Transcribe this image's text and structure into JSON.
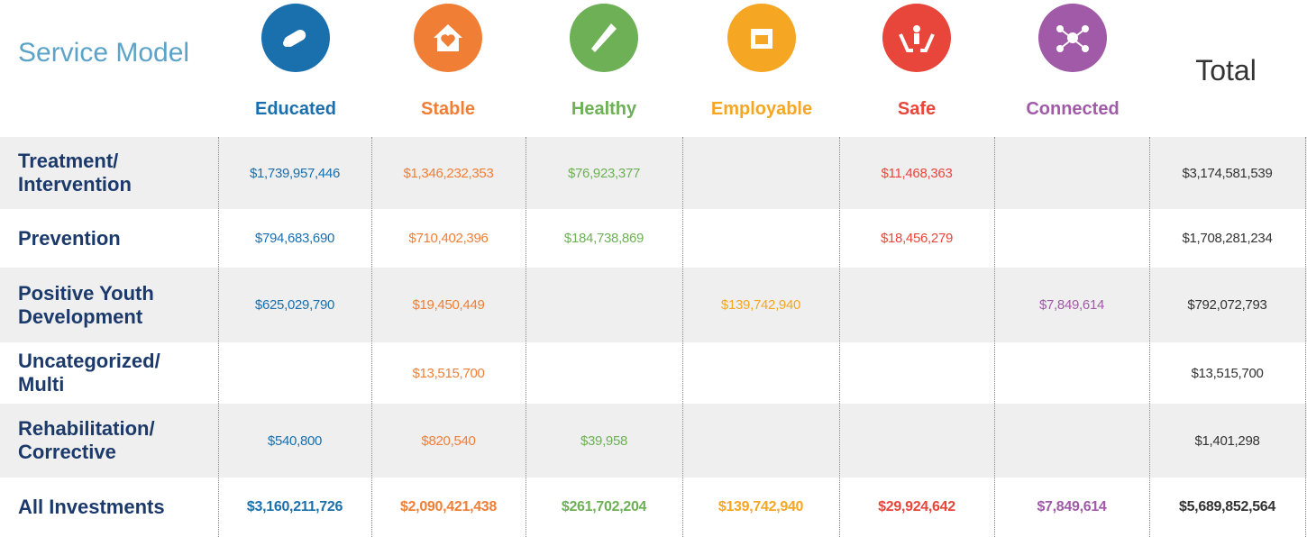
{
  "header": {
    "title": "Service Model",
    "total_label": "Total",
    "columns": [
      {
        "label": "Educated",
        "color": "#1a6fad"
      },
      {
        "label": "Stable",
        "color": "#f07f35"
      },
      {
        "label": "Healthy",
        "color": "#6db055"
      },
      {
        "label": "Employable",
        "color": "#f5a623"
      },
      {
        "label": "Safe",
        "color": "#e8463a"
      },
      {
        "label": "Connected",
        "color": "#a05aa8"
      }
    ]
  },
  "table": {
    "rows": [
      {
        "label": "Treatment/ Intervention",
        "cells": [
          "$1,739,957,446",
          "$1,346,232,353",
          "$76,923,377",
          null,
          "$11,468,363",
          null,
          "$3,174,581,539"
        ]
      },
      {
        "label": "Prevention",
        "cells": [
          "$794,683,690",
          "$710,402,396",
          "$184,738,869",
          null,
          "$18,456,279",
          null,
          "$1,708,281,234"
        ]
      },
      {
        "label": "Positive Youth Development",
        "cells": [
          "$625,029,790",
          "$19,450,449",
          null,
          "$139,742,940",
          null,
          "$7,849,614",
          "$792,072,793"
        ]
      },
      {
        "label": "Uncategorized/ Multi",
        "cells": [
          null,
          "$13,515,700",
          null,
          null,
          null,
          null,
          "$13,515,700"
        ]
      },
      {
        "label": "Rehabilitation/ Corrective",
        "cells": [
          "$540,800",
          "$820,540",
          "$39,958",
          null,
          null,
          null,
          "$1,401,298"
        ]
      }
    ],
    "footer": {
      "label": "All Investments",
      "cells": [
        "$3,160,211,726",
        "$2,090,421,438",
        "$261,702,204",
        "$139,742,940",
        "$29,924,642",
        "$7,849,614",
        "$5,689,852,564"
      ]
    }
  }
}
